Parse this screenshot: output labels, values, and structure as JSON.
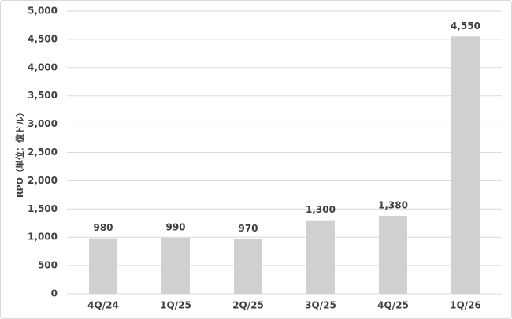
{
  "chart_data": {
    "type": "bar",
    "y_label": "RPO（単位：億ドル）",
    "categories": [
      "4Q/24",
      "1Q/25",
      "2Q/25",
      "3Q/25",
      "4Q/25",
      "1Q/26"
    ],
    "values": [
      980,
      990,
      970,
      1300,
      1380,
      4550
    ],
    "value_labels": [
      "980",
      "990",
      "970",
      "1,300",
      "1,380",
      "4,550"
    ],
    "color": "#d0d0d0",
    "ylim": [
      0,
      5000
    ],
    "yticks": [
      0,
      500,
      {
        "value": 1000,
        "label": "1,000"
      },
      {
        "value": 1500,
        "label": "1,500"
      },
      {
        "value": 2000,
        "label": "2,000"
      },
      {
        "value": 2500,
        "label": "2,500"
      },
      {
        "value": 3000,
        "label": "3,000"
      },
      {
        "value": 3500,
        "label": "3,500"
      },
      {
        "value": 4000,
        "label": "4,000"
      },
      {
        "value": 4500,
        "label": "4,500"
      },
      {
        "value": 5000,
        "label": "5,000"
      }
    ],
    "grid": true
  }
}
